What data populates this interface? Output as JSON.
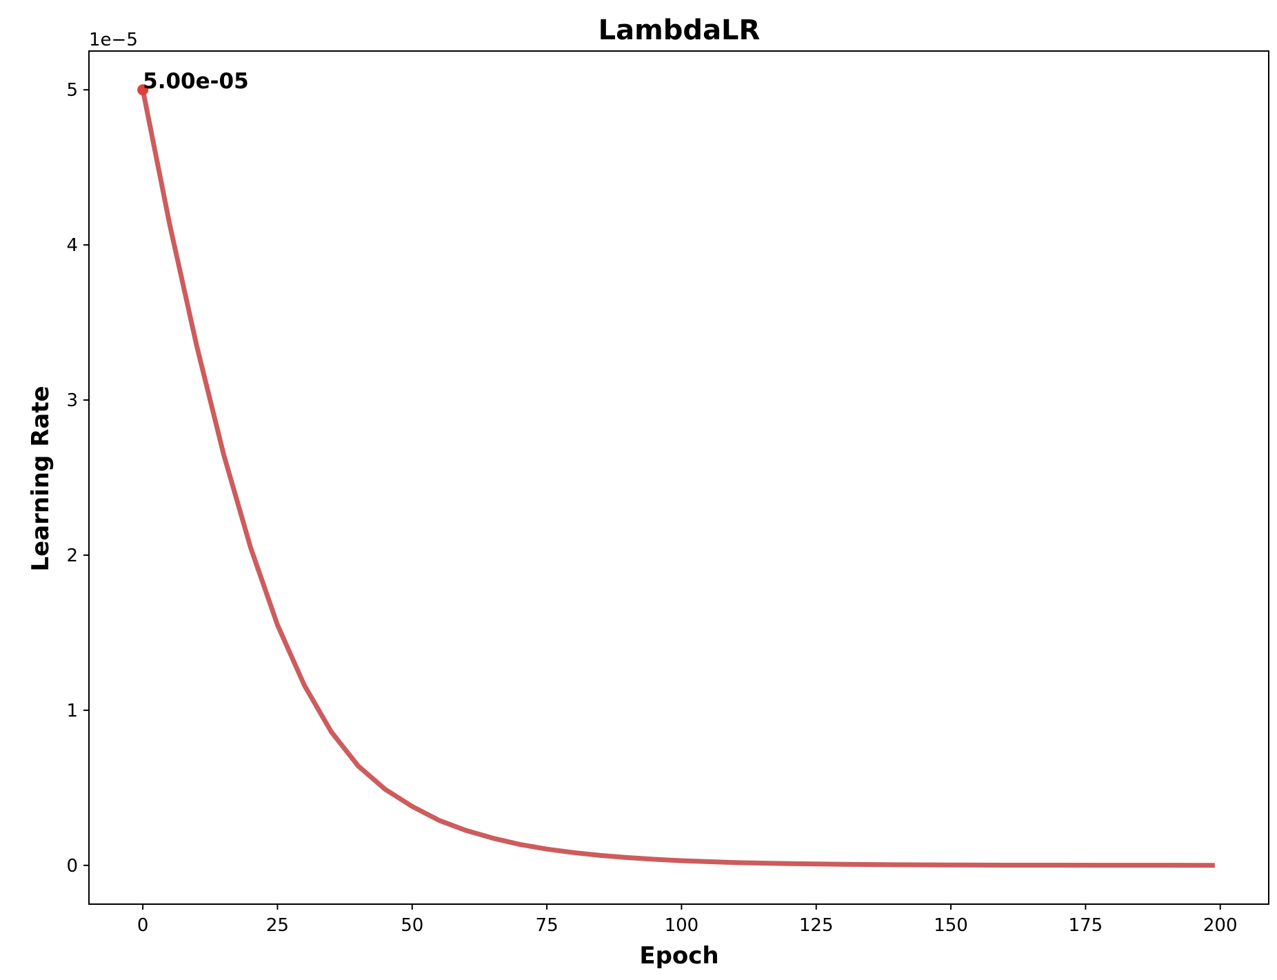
{
  "chart_data": {
    "type": "line",
    "title": "LambdaLR",
    "xlabel": "Epoch",
    "ylabel": "Learning Rate",
    "y_offset_label": "1e−5",
    "xlim": [
      -10,
      209
    ],
    "ylim": [
      -0.25,
      5.25
    ],
    "y_scale_note": "y values shown in units of 1e-5",
    "x_ticks": [
      0,
      25,
      50,
      75,
      100,
      125,
      150,
      175,
      200
    ],
    "x_tick_labels": [
      "0",
      "25",
      "50",
      "75",
      "100",
      "125",
      "150",
      "175",
      "200"
    ],
    "y_ticks": [
      0,
      1,
      2,
      3,
      4,
      5
    ],
    "y_tick_labels": [
      "0",
      "1",
      "2",
      "3",
      "4",
      "5"
    ],
    "grid": false,
    "legend": "none",
    "series": [
      {
        "color": "#cd5c5c",
        "x": [
          0,
          5,
          10,
          15,
          20,
          25,
          30,
          35,
          40,
          45,
          50,
          55,
          60,
          65,
          70,
          75,
          80,
          85,
          90,
          95,
          100,
          110,
          120,
          130,
          140,
          150,
          160,
          170,
          180,
          190,
          199
        ],
        "y": [
          5.0,
          4.13,
          3.35,
          2.65,
          2.05,
          1.55,
          1.16,
          0.86,
          0.64,
          0.49,
          0.38,
          0.29,
          0.225,
          0.175,
          0.135,
          0.105,
          0.082,
          0.064,
          0.05,
          0.039,
          0.03,
          0.018,
          0.011,
          0.007,
          0.004,
          0.0025,
          0.0015,
          0.001,
          0.0006,
          0.0004,
          0.0002
        ]
      }
    ],
    "annotations": [
      {
        "x": 0,
        "y": 5.0,
        "text": "5.00e-05",
        "marker_color": "#e0403a"
      }
    ]
  }
}
